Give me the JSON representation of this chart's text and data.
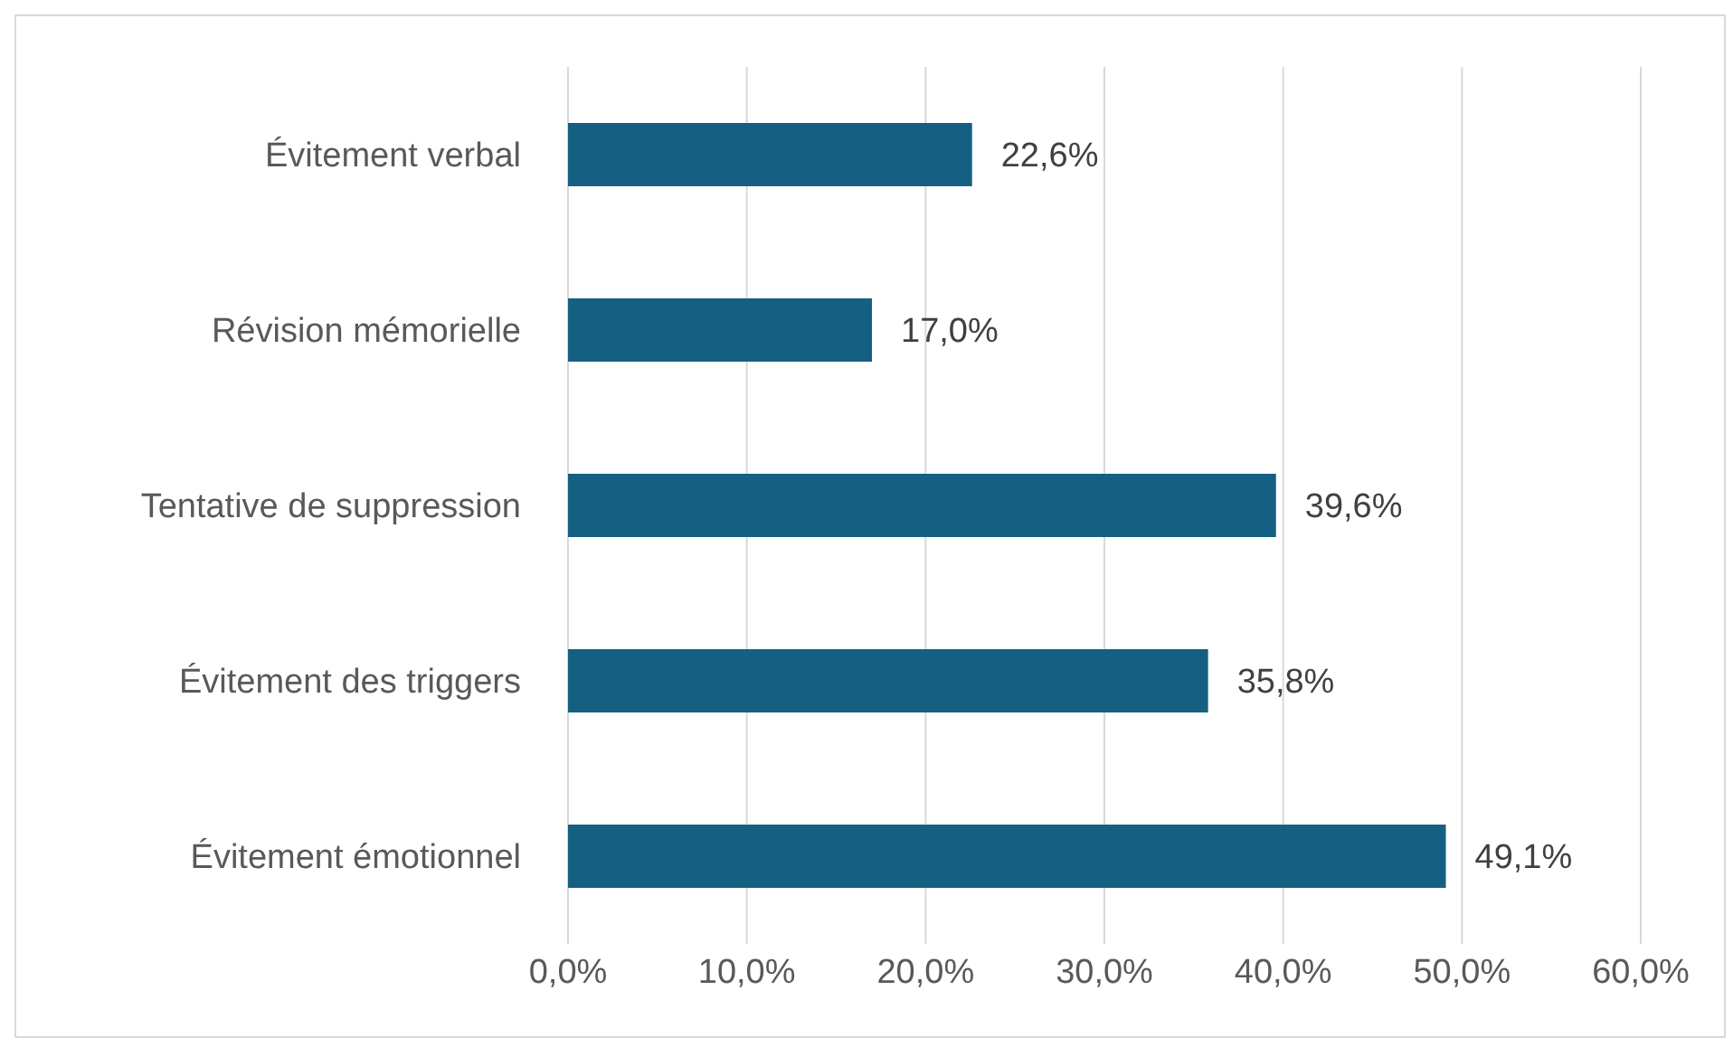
{
  "chart_data": {
    "type": "bar",
    "orientation": "horizontal",
    "categories": [
      "Évitement verbal",
      "Révision mémorielle",
      "Tentative de suppression",
      "Évitement des triggers",
      "Évitement émotionnel"
    ],
    "values": [
      22.6,
      17.0,
      39.6,
      35.8,
      49.1
    ],
    "value_labels": [
      "22,6%",
      "17,0%",
      "39,6%",
      "35,8%",
      "49,1%"
    ],
    "color": "#156082",
    "xlim": [
      0,
      60
    ],
    "xticks": [
      {
        "value": 0,
        "label": "0,0%"
      },
      {
        "value": 10,
        "label": "10,0%"
      },
      {
        "value": 20,
        "label": "20,0%"
      },
      {
        "value": 30,
        "label": "30,0%"
      },
      {
        "value": 40,
        "label": "40,0%"
      },
      {
        "value": 50,
        "label": "50,0%"
      },
      {
        "value": 60,
        "label": "60,0%"
      }
    ],
    "grid": "x"
  }
}
